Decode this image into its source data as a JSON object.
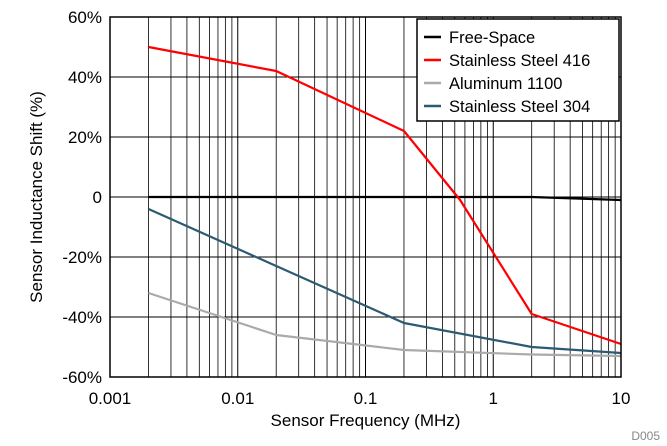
{
  "chart_data": {
    "type": "line",
    "xlabel": "Sensor Frequency (MHz)",
    "ylabel": "Sensor Inductance Shift (%)",
    "x_scale": "log",
    "xlim": [
      0.001,
      10
    ],
    "ylim": [
      -60,
      60
    ],
    "x_ticks": [
      0.001,
      0.01,
      0.1,
      1,
      10
    ],
    "x_tick_labels": [
      "0.001",
      "0.01",
      "0.1",
      "1",
      "10"
    ],
    "y_ticks": [
      60,
      40,
      20,
      0,
      -20,
      -40,
      -60
    ],
    "y_tick_labels": [
      "60%",
      "40%",
      "20%",
      "0",
      "-20%",
      "-40%",
      "-60%"
    ],
    "grid": {
      "x": "major and minor",
      "y": "major"
    },
    "legend_position": "top-right",
    "corner_note": "D005",
    "series": [
      {
        "name": "Free-Space",
        "color": "#000000",
        "x": [
          0.002,
          0.02,
          0.2,
          2,
          10
        ],
        "y": [
          0,
          0,
          0,
          0,
          -1
        ]
      },
      {
        "name": "Stainless Steel 416",
        "color": "#ff0000",
        "x": [
          0.002,
          0.02,
          0.2,
          0.55,
          2,
          10
        ],
        "y": [
          50,
          42,
          22,
          -1,
          -39,
          -49
        ]
      },
      {
        "name": "Aluminum 1100",
        "color": "#aaaaaa",
        "x": [
          0.002,
          0.02,
          0.2,
          2,
          10
        ],
        "y": [
          -32,
          -46,
          -51,
          -52.5,
          -53
        ]
      },
      {
        "name": "Stainless Steel 304",
        "color": "#2d5a73",
        "x": [
          0.002,
          0.02,
          0.2,
          2,
          10
        ],
        "y": [
          -4,
          -23,
          -42,
          -50,
          -52
        ]
      }
    ]
  }
}
